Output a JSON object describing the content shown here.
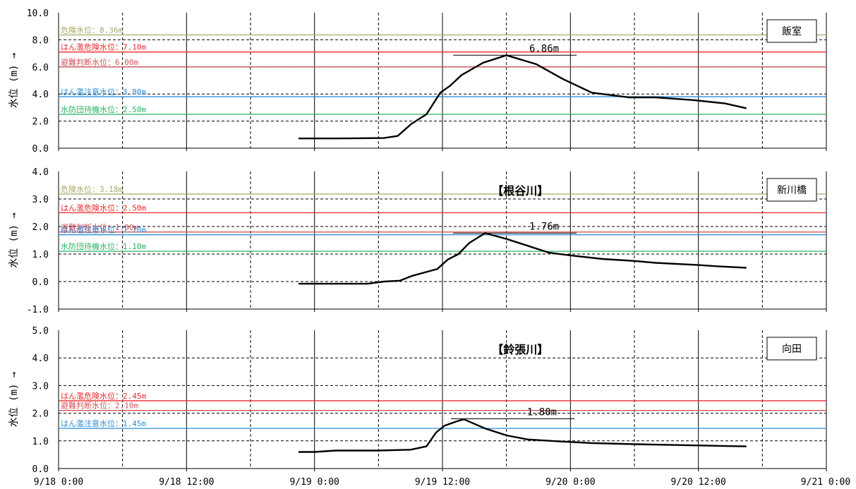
{
  "chart_data": [
    {
      "type": "line",
      "station": "飯室",
      "river": "",
      "ylabel": "水位 (m) →",
      "ylim": [
        0,
        10
      ],
      "yticks": [
        "10.0",
        "8.0",
        "6.0",
        "4.0",
        "2.0",
        "0.0"
      ],
      "ytick_values": [
        10,
        8,
        6,
        4,
        2,
        0
      ],
      "xlim": [
        "9/18 0:00",
        "9/21 0:00"
      ],
      "grid": true,
      "thresholds": [
        {
          "label": "危険水位：8.36m",
          "value": 8.36,
          "color": "#a7a968"
        },
        {
          "label": "はん濫危険水位：7.10m",
          "value": 7.1,
          "color": "#ee2a2a"
        },
        {
          "label": "避難判断水位：6.00m",
          "value": 6.0,
          "color": "#d0555a"
        },
        {
          "label": "はん濫注意水位：3.80m",
          "value": 3.8,
          "color": "#2c8fd6"
        },
        {
          "label": "水防団待機水位：2.50m",
          "value": 2.5,
          "color": "#28b463"
        }
      ],
      "peak": {
        "label": "6.86m",
        "x_hours": 37,
        "value": 6.86
      },
      "series": [
        {
          "x_hours": [
            22.5,
            26,
            30.5,
            31.8,
            33.1,
            34.5,
            35.8,
            36.7,
            37.8,
            39.8,
            42,
            44.8,
            47.3,
            50,
            53.5,
            56,
            59.5,
            62.5,
            64.5
          ],
          "values": [
            0.72,
            0.72,
            0.75,
            0.9,
            1.8,
            2.5,
            4.1,
            4.6,
            5.4,
            6.3,
            6.86,
            6.2,
            5.1,
            4.1,
            3.75,
            3.75,
            3.55,
            3.3,
            2.95
          ]
        }
      ]
    },
    {
      "type": "line",
      "station": "新川橋",
      "river": "【根谷川】",
      "ylabel": "水位 (m) →",
      "ylim": [
        -1,
        4
      ],
      "yticks": [
        "4.0",
        "3.0",
        "2.0",
        "1.0",
        "0.0",
        "-1.0"
      ],
      "ytick_values": [
        4,
        3,
        2,
        1,
        0,
        -1
      ],
      "xlim": [
        "9/18 0:00",
        "9/21 0:00"
      ],
      "grid": true,
      "thresholds": [
        {
          "label": "危険水位：3.18m",
          "value": 3.18,
          "color": "#a7a968"
        },
        {
          "label": "はん濫危険水位：2.50m",
          "value": 2.5,
          "color": "#ee2a2a"
        },
        {
          "label": "避難判断水位：1.80m",
          "value": 1.8,
          "color": "#d0555a"
        },
        {
          "label": "はん濫注意水位：1.70m",
          "value": 1.7,
          "color": "#2c8fd6"
        },
        {
          "label": "水防団待機水位：1.10m",
          "value": 1.1,
          "color": "#28b463"
        }
      ],
      "peak": {
        "label": "1.76m",
        "x_hours": 37,
        "value": 1.76
      },
      "series": [
        {
          "x_hours": [
            22.5,
            29,
            30.5,
            32,
            33.1,
            34.5,
            35.5,
            36.5,
            37.5,
            38.5,
            40,
            42,
            44,
            46,
            48,
            51,
            54,
            56,
            60,
            62,
            64.5
          ],
          "values": [
            -0.08,
            -0.08,
            0.0,
            0.03,
            0.2,
            0.35,
            0.45,
            0.8,
            1.0,
            1.4,
            1.76,
            1.55,
            1.3,
            1.05,
            0.95,
            0.82,
            0.75,
            0.68,
            0.6,
            0.55,
            0.5
          ]
        }
      ]
    },
    {
      "type": "line",
      "station": "向田",
      "river": "【鈴張川】",
      "ylabel": "水位 (m) →",
      "ylim": [
        0,
        5
      ],
      "yticks": [
        "5.0",
        "4.0",
        "3.0",
        "2.0",
        "1.0",
        "0.0"
      ],
      "ytick_values": [
        5,
        4,
        3,
        2,
        1,
        0
      ],
      "xlim": [
        "9/18 0:00",
        "9/21 0:00"
      ],
      "xticks": [
        "9/18 0:00",
        "9/18 12:00",
        "9/19 0:00",
        "9/19 12:00",
        "9/20 0:00",
        "9/20 12:00",
        "9/21 0:00"
      ],
      "grid": true,
      "thresholds": [
        {
          "label": "はん濫危険水位：2.45m",
          "value": 2.45,
          "color": "#ee2a2a"
        },
        {
          "label": "避難判断水位：2.10m",
          "value": 2.1,
          "color": "#d0555a"
        },
        {
          "label": "はん濫注意水位：1.45m",
          "value": 1.45,
          "color": "#2c8fd6"
        }
      ],
      "peak": {
        "label": "1.80m",
        "x_hours": 36.8,
        "value": 1.8
      },
      "series": [
        {
          "x_hours": [
            22.5,
            24,
            26,
            30,
            33,
            34.5,
            35.4,
            36.2,
            37.3,
            38,
            40,
            42,
            44,
            47,
            50,
            54,
            58,
            62,
            64.5
          ],
          "values": [
            0.6,
            0.6,
            0.65,
            0.65,
            0.68,
            0.8,
            1.3,
            1.55,
            1.7,
            1.78,
            1.45,
            1.2,
            1.05,
            0.98,
            0.92,
            0.88,
            0.85,
            0.82,
            0.8
          ]
        }
      ]
    }
  ]
}
